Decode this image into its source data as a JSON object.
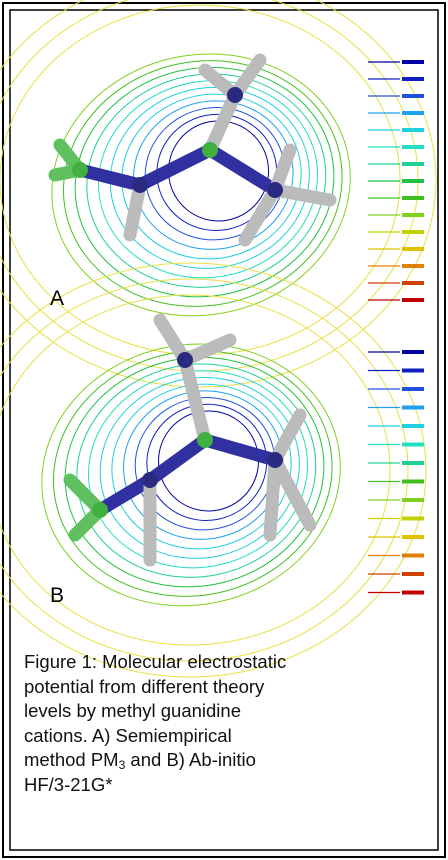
{
  "panels": [
    {
      "label": "A"
    },
    {
      "label": "B"
    }
  ],
  "caption": {
    "lines": [
      "Figure 1: Molecular electrostatic",
      "potential from different theory",
      "levels by methyl guanidine",
      "cations. A) Semiempirical"
    ],
    "method_line": {
      "text": "method PM",
      "subscript": "3",
      "rest": " and B) Ab-initio"
    },
    "last_line": "HF/3-21G*"
  }
}
